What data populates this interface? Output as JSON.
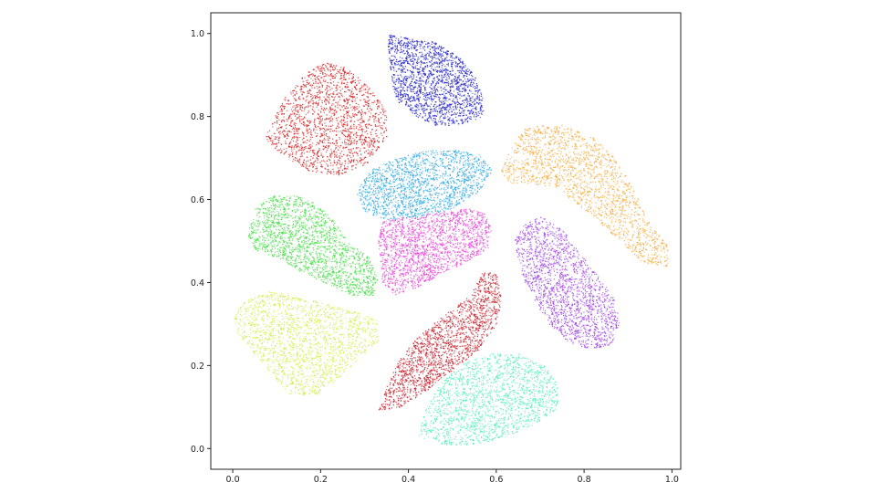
{
  "chart_data": {
    "type": "scatter",
    "title": "",
    "xlabel": "",
    "ylabel": "",
    "xlim": [
      -0.05,
      1.02
    ],
    "ylim": [
      -0.05,
      1.05
    ],
    "xticks": [
      "0.0",
      "0.2",
      "0.4",
      "0.6",
      "0.8",
      "1.0"
    ],
    "yticks": [
      "0.0",
      "0.2",
      "0.4",
      "0.6",
      "0.8",
      "1.0"
    ],
    "grid": false,
    "legend": "none",
    "clusters": [
      {
        "color": "#d42a2a",
        "polygon": [
          [
            0.09,
            0.79
          ],
          [
            0.12,
            0.85
          ],
          [
            0.16,
            0.9
          ],
          [
            0.2,
            0.93
          ],
          [
            0.24,
            0.93
          ],
          [
            0.28,
            0.9
          ],
          [
            0.32,
            0.86
          ],
          [
            0.35,
            0.81
          ],
          [
            0.35,
            0.75
          ],
          [
            0.31,
            0.69
          ],
          [
            0.24,
            0.66
          ],
          [
            0.17,
            0.67
          ],
          [
            0.11,
            0.71
          ],
          [
            0.07,
            0.75
          ]
        ]
      },
      {
        "color": "#2a2ac8",
        "polygon": [
          [
            0.35,
            1.0
          ],
          [
            0.4,
            0.99
          ],
          [
            0.46,
            0.98
          ],
          [
            0.51,
            0.95
          ],
          [
            0.55,
            0.9
          ],
          [
            0.57,
            0.84
          ],
          [
            0.57,
            0.8
          ],
          [
            0.51,
            0.78
          ],
          [
            0.46,
            0.78
          ],
          [
            0.42,
            0.8
          ],
          [
            0.37,
            0.84
          ],
          [
            0.36,
            0.9
          ]
        ]
      },
      {
        "color": "#f5b04a",
        "polygon": [
          [
            0.61,
            0.67
          ],
          [
            0.63,
            0.72
          ],
          [
            0.66,
            0.77
          ],
          [
            0.7,
            0.78
          ],
          [
            0.75,
            0.78
          ],
          [
            0.82,
            0.75
          ],
          [
            0.87,
            0.7
          ],
          [
            0.91,
            0.63
          ],
          [
            0.95,
            0.54
          ],
          [
            0.99,
            0.49
          ],
          [
            0.99,
            0.44
          ],
          [
            0.93,
            0.45
          ],
          [
            0.88,
            0.5
          ],
          [
            0.82,
            0.56
          ],
          [
            0.77,
            0.6
          ],
          [
            0.73,
            0.63
          ],
          [
            0.68,
            0.64
          ],
          [
            0.63,
            0.64
          ]
        ]
      },
      {
        "color": "#3aaee6",
        "polygon": [
          [
            0.28,
            0.62
          ],
          [
            0.31,
            0.67
          ],
          [
            0.37,
            0.7
          ],
          [
            0.44,
            0.72
          ],
          [
            0.51,
            0.72
          ],
          [
            0.56,
            0.71
          ],
          [
            0.59,
            0.67
          ],
          [
            0.56,
            0.62
          ],
          [
            0.5,
            0.58
          ],
          [
            0.43,
            0.56
          ],
          [
            0.36,
            0.55
          ],
          [
            0.3,
            0.57
          ]
        ]
      },
      {
        "color": "#4ae04a",
        "polygon": [
          [
            0.03,
            0.51
          ],
          [
            0.05,
            0.58
          ],
          [
            0.09,
            0.61
          ],
          [
            0.15,
            0.61
          ],
          [
            0.19,
            0.59
          ],
          [
            0.23,
            0.55
          ],
          [
            0.26,
            0.5
          ],
          [
            0.31,
            0.46
          ],
          [
            0.33,
            0.41
          ],
          [
            0.32,
            0.37
          ],
          [
            0.27,
            0.37
          ],
          [
            0.21,
            0.4
          ],
          [
            0.15,
            0.43
          ],
          [
            0.1,
            0.46
          ],
          [
            0.05,
            0.48
          ]
        ]
      },
      {
        "color": "#e84ad8",
        "polygon": [
          [
            0.33,
            0.5
          ],
          [
            0.34,
            0.55
          ],
          [
            0.4,
            0.56
          ],
          [
            0.47,
            0.57
          ],
          [
            0.53,
            0.58
          ],
          [
            0.57,
            0.57
          ],
          [
            0.59,
            0.53
          ],
          [
            0.58,
            0.48
          ],
          [
            0.53,
            0.45
          ],
          [
            0.47,
            0.42
          ],
          [
            0.42,
            0.39
          ],
          [
            0.37,
            0.37
          ],
          [
            0.34,
            0.4
          ]
        ]
      },
      {
        "color": "#a24ae6",
        "polygon": [
          [
            0.64,
            0.5
          ],
          [
            0.66,
            0.54
          ],
          [
            0.7,
            0.56
          ],
          [
            0.75,
            0.53
          ],
          [
            0.79,
            0.47
          ],
          [
            0.83,
            0.42
          ],
          [
            0.87,
            0.36
          ],
          [
            0.88,
            0.3
          ],
          [
            0.86,
            0.25
          ],
          [
            0.81,
            0.24
          ],
          [
            0.76,
            0.26
          ],
          [
            0.72,
            0.3
          ],
          [
            0.69,
            0.35
          ],
          [
            0.66,
            0.41
          ]
        ]
      },
      {
        "color": "#d0f050",
        "polygon": [
          [
            0.0,
            0.32
          ],
          [
            0.03,
            0.36
          ],
          [
            0.08,
            0.38
          ],
          [
            0.14,
            0.37
          ],
          [
            0.21,
            0.35
          ],
          [
            0.28,
            0.33
          ],
          [
            0.33,
            0.31
          ],
          [
            0.33,
            0.26
          ],
          [
            0.29,
            0.22
          ],
          [
            0.24,
            0.17
          ],
          [
            0.19,
            0.13
          ],
          [
            0.13,
            0.13
          ],
          [
            0.08,
            0.19
          ],
          [
            0.04,
            0.24
          ],
          [
            0.01,
            0.28
          ]
        ]
      },
      {
        "color": "#cc2a36",
        "polygon": [
          [
            0.33,
            0.09
          ],
          [
            0.35,
            0.15
          ],
          [
            0.38,
            0.22
          ],
          [
            0.43,
            0.28
          ],
          [
            0.49,
            0.33
          ],
          [
            0.54,
            0.37
          ],
          [
            0.57,
            0.43
          ],
          [
            0.6,
            0.43
          ],
          [
            0.61,
            0.36
          ],
          [
            0.6,
            0.3
          ],
          [
            0.56,
            0.24
          ],
          [
            0.5,
            0.19
          ],
          [
            0.44,
            0.14
          ],
          [
            0.38,
            0.1
          ]
        ]
      },
      {
        "color": "#5af0be",
        "polygon": [
          [
            0.42,
            0.03
          ],
          [
            0.44,
            0.1
          ],
          [
            0.48,
            0.17
          ],
          [
            0.53,
            0.21
          ],
          [
            0.59,
            0.23
          ],
          [
            0.65,
            0.23
          ],
          [
            0.71,
            0.2
          ],
          [
            0.74,
            0.15
          ],
          [
            0.74,
            0.1
          ],
          [
            0.69,
            0.06
          ],
          [
            0.62,
            0.03
          ],
          [
            0.55,
            0.01
          ],
          [
            0.48,
            0.01
          ]
        ]
      }
    ]
  }
}
